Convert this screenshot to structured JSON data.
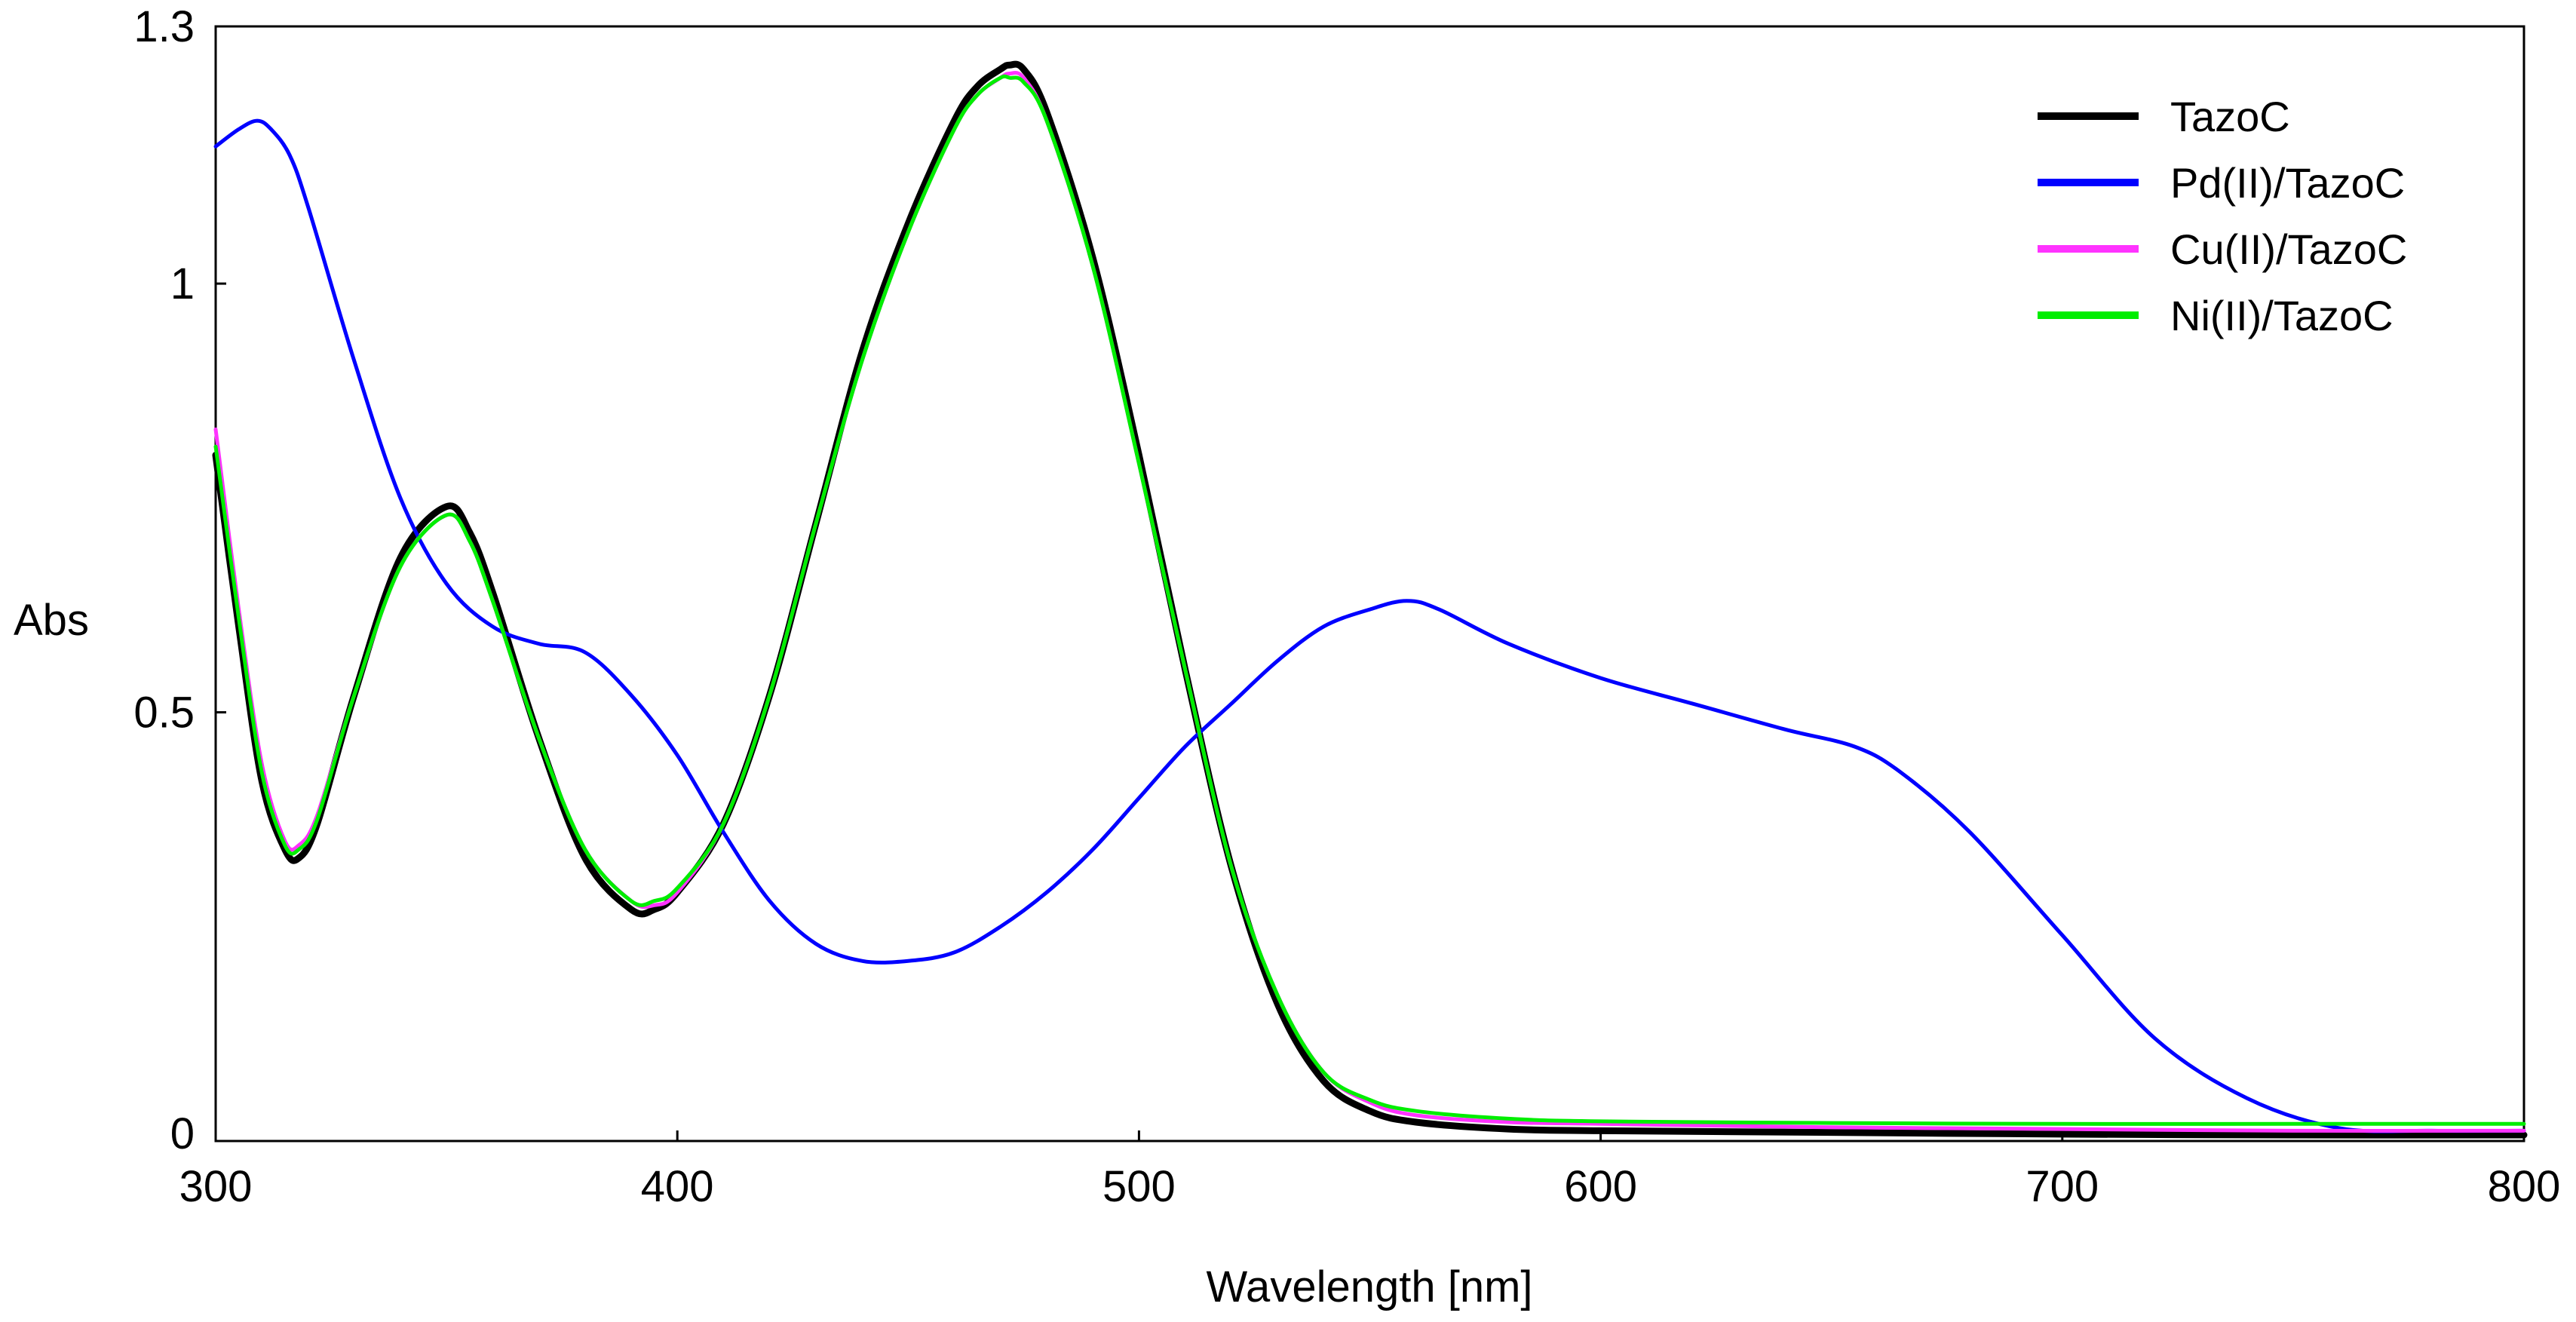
{
  "chart_data": {
    "type": "line",
    "title": "",
    "xlabel": "Wavelength [nm]",
    "ylabel": "Abs",
    "xlim": [
      300,
      800
    ],
    "ylim": [
      0,
      1.3
    ],
    "xticks": [
      300,
      400,
      500,
      600,
      700,
      800
    ],
    "xtick_labels": [
      "300",
      "400",
      "500",
      "600",
      "700",
      "800"
    ],
    "yticks": [
      0,
      0.5,
      1,
      1.3
    ],
    "ytick_labels": [
      "0",
      "0.5",
      "1",
      "1.3"
    ],
    "grid": false,
    "legend_position": "top-right",
    "series": [
      {
        "name": "TazoC",
        "color": "#000000",
        "x": [
          300,
          305,
          310,
          315,
          318,
          322,
          330,
          340,
          350,
          355,
          360,
          370,
          380,
          390,
          395,
          400,
          410,
          420,
          430,
          440,
          450,
          460,
          465,
          470,
          472,
          475,
          480,
          490,
          500,
          510,
          520,
          530,
          540,
          550,
          560,
          580,
          600,
          650,
          700,
          750,
          800
        ],
        "y": [
          0.8,
          0.6,
          0.42,
          0.34,
          0.33,
          0.37,
          0.52,
          0.68,
          0.74,
          0.71,
          0.64,
          0.47,
          0.33,
          0.27,
          0.27,
          0.29,
          0.37,
          0.52,
          0.72,
          0.92,
          1.07,
          1.19,
          1.23,
          1.25,
          1.255,
          1.25,
          1.2,
          1.03,
          0.8,
          0.55,
          0.32,
          0.16,
          0.07,
          0.035,
          0.022,
          0.014,
          0.012,
          0.01,
          0.008,
          0.007,
          0.007
        ]
      },
      {
        "name": "Pd(II)/TazoC",
        "color": "#0000ff",
        "x": [
          300,
          305,
          309,
          312,
          316,
          320,
          330,
          340,
          350,
          360,
          370,
          380,
          390,
          400,
          410,
          420,
          430,
          440,
          450,
          460,
          470,
          480,
          490,
          500,
          510,
          520,
          530,
          540,
          550,
          558,
          565,
          580,
          600,
          620,
          640,
          655,
          665,
          680,
          700,
          720,
          740,
          760,
          780,
          800
        ],
        "y": [
          1.16,
          1.18,
          1.19,
          1.18,
          1.15,
          1.09,
          0.91,
          0.75,
          0.65,
          0.6,
          0.58,
          0.57,
          0.52,
          0.45,
          0.36,
          0.28,
          0.23,
          0.21,
          0.21,
          0.22,
          0.25,
          0.29,
          0.34,
          0.4,
          0.46,
          0.51,
          0.56,
          0.6,
          0.62,
          0.63,
          0.62,
          0.58,
          0.54,
          0.51,
          0.48,
          0.46,
          0.43,
          0.36,
          0.24,
          0.12,
          0.05,
          0.015,
          0.012,
          0.012
        ]
      },
      {
        "name": "Cu(II)/TazoC",
        "color": "#ff33ff",
        "x": [
          300,
          305,
          310,
          315,
          318,
          322,
          330,
          340,
          350,
          355,
          360,
          370,
          380,
          390,
          395,
          400,
          410,
          420,
          430,
          440,
          450,
          460,
          465,
          470,
          472,
          475,
          480,
          490,
          500,
          510,
          520,
          530,
          540,
          550,
          560,
          580,
          600,
          650,
          700,
          750,
          800
        ],
        "y": [
          0.83,
          0.62,
          0.44,
          0.35,
          0.345,
          0.38,
          0.52,
          0.67,
          0.73,
          0.7,
          0.63,
          0.47,
          0.34,
          0.28,
          0.275,
          0.29,
          0.37,
          0.52,
          0.72,
          0.91,
          1.06,
          1.18,
          1.22,
          1.24,
          1.245,
          1.24,
          1.19,
          1.02,
          0.79,
          0.55,
          0.32,
          0.17,
          0.08,
          0.045,
          0.03,
          0.022,
          0.02,
          0.016,
          0.014,
          0.012,
          0.012
        ]
      },
      {
        "name": "Ni(II)/TazoC",
        "color": "#00ee00",
        "x": [
          300,
          305,
          310,
          315,
          318,
          322,
          330,
          340,
          350,
          355,
          360,
          370,
          380,
          390,
          395,
          400,
          410,
          420,
          430,
          440,
          450,
          460,
          465,
          470,
          472,
          475,
          480,
          490,
          500,
          510,
          520,
          530,
          540,
          550,
          560,
          580,
          600,
          650,
          700,
          750,
          800
        ],
        "y": [
          0.81,
          0.61,
          0.43,
          0.345,
          0.34,
          0.375,
          0.52,
          0.67,
          0.73,
          0.7,
          0.63,
          0.47,
          0.34,
          0.28,
          0.28,
          0.295,
          0.37,
          0.52,
          0.72,
          0.91,
          1.06,
          1.18,
          1.22,
          1.24,
          1.24,
          1.235,
          1.19,
          1.02,
          0.79,
          0.55,
          0.32,
          0.17,
          0.08,
          0.048,
          0.035,
          0.026,
          0.023,
          0.021,
          0.02,
          0.02,
          0.02
        ]
      }
    ]
  }
}
